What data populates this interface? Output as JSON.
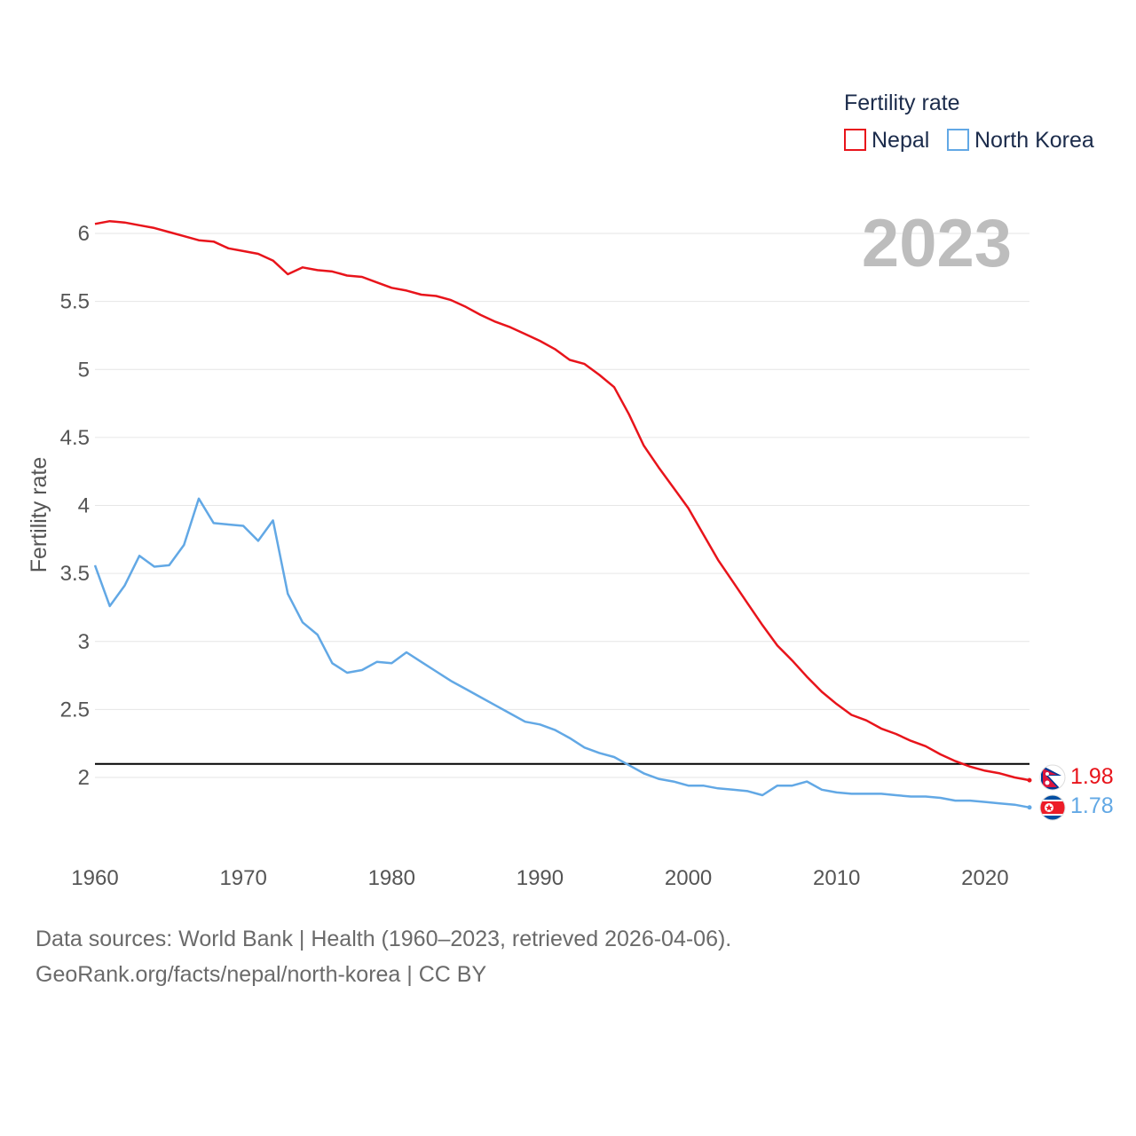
{
  "chart_data": {
    "type": "line",
    "title": "",
    "xlabel": "",
    "ylabel": "Fertility rate",
    "year_label": "2023",
    "xlim": [
      1960,
      2023
    ],
    "ylim": [
      1.55,
      6.15
    ],
    "xticks": [
      1960,
      1970,
      1980,
      1990,
      2000,
      2010,
      2020
    ],
    "yticks": [
      2,
      2.5,
      3,
      3.5,
      4,
      4.5,
      5,
      5.5,
      6
    ],
    "ytick_labels": [
      "2",
      "2.5",
      "3",
      "3.5",
      "4",
      "4.5",
      "5",
      "5.5",
      "6"
    ],
    "grid": true,
    "legend": {
      "title": "Fertility rate",
      "position": "top-right"
    },
    "reference_line": {
      "y": 2.1,
      "color": "#000000"
    },
    "x": [
      1960,
      1961,
      1962,
      1963,
      1964,
      1965,
      1966,
      1967,
      1968,
      1969,
      1970,
      1971,
      1972,
      1973,
      1974,
      1975,
      1976,
      1977,
      1978,
      1979,
      1980,
      1981,
      1982,
      1983,
      1984,
      1985,
      1986,
      1987,
      1988,
      1989,
      1990,
      1991,
      1992,
      1993,
      1994,
      1995,
      1996,
      1997,
      1998,
      1999,
      2000,
      2001,
      2002,
      2003,
      2004,
      2005,
      2006,
      2007,
      2008,
      2009,
      2010,
      2011,
      2012,
      2013,
      2014,
      2015,
      2016,
      2017,
      2018,
      2019,
      2020,
      2021,
      2022,
      2023
    ],
    "series": [
      {
        "name": "Nepal",
        "color": "#e8141b",
        "end_label": "1.98",
        "values": [
          6.07,
          6.09,
          6.08,
          6.06,
          6.04,
          6.01,
          5.98,
          5.95,
          5.94,
          5.89,
          5.87,
          5.85,
          5.8,
          5.7,
          5.75,
          5.73,
          5.72,
          5.69,
          5.68,
          5.64,
          5.6,
          5.58,
          5.55,
          5.54,
          5.51,
          5.46,
          5.4,
          5.35,
          5.31,
          5.26,
          5.21,
          5.15,
          5.07,
          5.04,
          4.96,
          4.87,
          4.67,
          4.44,
          4.28,
          4.13,
          3.98,
          3.79,
          3.6,
          3.44,
          3.28,
          3.12,
          2.97,
          2.86,
          2.74,
          2.63,
          2.54,
          2.46,
          2.42,
          2.36,
          2.32,
          2.27,
          2.23,
          2.17,
          2.12,
          2.08,
          2.05,
          2.03,
          2.0,
          1.98
        ]
      },
      {
        "name": "North Korea",
        "color": "#62a8e5",
        "end_label": "1.78",
        "values": [
          3.56,
          3.26,
          3.41,
          3.63,
          3.55,
          3.56,
          3.71,
          4.05,
          3.87,
          3.86,
          3.85,
          3.74,
          3.89,
          3.35,
          3.14,
          3.05,
          2.84,
          2.77,
          2.79,
          2.85,
          2.84,
          2.92,
          2.85,
          2.78,
          2.71,
          2.65,
          2.59,
          2.53,
          2.47,
          2.41,
          2.39,
          2.35,
          2.29,
          2.22,
          2.18,
          2.15,
          2.09,
          2.03,
          1.99,
          1.97,
          1.94,
          1.94,
          1.92,
          1.91,
          1.9,
          1.87,
          1.94,
          1.94,
          1.97,
          1.91,
          1.89,
          1.88,
          1.88,
          1.88,
          1.87,
          1.86,
          1.86,
          1.85,
          1.83,
          1.83,
          1.82,
          1.81,
          1.8,
          1.78
        ]
      }
    ]
  },
  "source": {
    "line1": "Data sources: World Bank | Health (1960–2023, retrieved 2026-04-06).",
    "line2": "GeoRank.org/facts/nepal/north-korea | CC BY"
  }
}
